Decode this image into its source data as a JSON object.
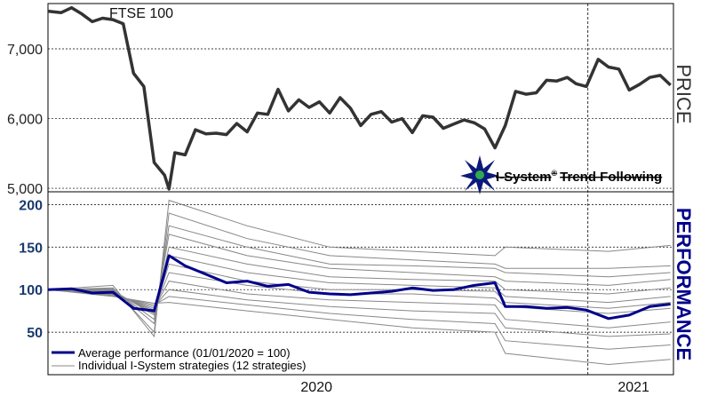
{
  "chart_data": [
    {
      "type": "line",
      "panel": "price",
      "title": "FTSE 100",
      "ylabel": "PRICE",
      "ylim": [
        4950,
        7650
      ],
      "yticks": [
        5000,
        6000,
        7000
      ],
      "ytick_labels": [
        "5,000",
        "6,000",
        "7,000"
      ],
      "grid": "horizontal dotted",
      "x_start": "2020-01-01",
      "x_end": "2021-02-28",
      "year_divider": "2021-01-01",
      "series": [
        {
          "color": "#333333",
          "x": [
            "2020-01-01",
            "2020-01-10",
            "2020-01-17",
            "2020-01-24",
            "2020-01-31",
            "2020-02-07",
            "2020-02-14",
            "2020-02-21",
            "2020-02-28",
            "2020-03-06",
            "2020-03-13",
            "2020-03-20",
            "2020-03-23",
            "2020-03-27",
            "2020-04-03",
            "2020-04-10",
            "2020-04-17",
            "2020-04-24",
            "2020-05-01",
            "2020-05-08",
            "2020-05-15",
            "2020-05-22",
            "2020-05-29",
            "2020-06-05",
            "2020-06-12",
            "2020-06-19",
            "2020-06-26",
            "2020-07-03",
            "2020-07-10",
            "2020-07-17",
            "2020-07-24",
            "2020-07-31",
            "2020-08-07",
            "2020-08-14",
            "2020-08-21",
            "2020-08-28",
            "2020-09-04",
            "2020-09-11",
            "2020-09-18",
            "2020-09-25",
            "2020-10-02",
            "2020-10-09",
            "2020-10-16",
            "2020-10-23",
            "2020-10-30",
            "2020-11-06",
            "2020-11-13",
            "2020-11-20",
            "2020-11-27",
            "2020-12-04",
            "2020-12-11",
            "2020-12-18",
            "2020-12-24",
            "2020-12-31",
            "2021-01-08",
            "2021-01-15",
            "2021-01-22",
            "2021-01-29",
            "2021-02-05",
            "2021-02-12",
            "2021-02-19",
            "2021-02-26"
          ],
          "values": [
            7540,
            7520,
            7590,
            7500,
            7390,
            7440,
            7420,
            7360,
            6650,
            6460,
            5370,
            5190,
            4990,
            5510,
            5480,
            5840,
            5780,
            5790,
            5770,
            5930,
            5810,
            6080,
            6060,
            6420,
            6110,
            6270,
            6160,
            6240,
            6080,
            6300,
            6150,
            5900,
            6060,
            6100,
            5950,
            6000,
            5800,
            6040,
            6020,
            5860,
            5920,
            5980,
            5940,
            5850,
            5580,
            5900,
            6390,
            6350,
            6370,
            6550,
            6540,
            6590,
            6500,
            6460,
            6850,
            6740,
            6710,
            6410,
            6490,
            6590,
            6620,
            6480
          ]
        }
      ]
    },
    {
      "type": "line",
      "panel": "performance",
      "ylabel": "PERFORMANCE",
      "ylim": [
        0,
        215
      ],
      "yticks": [
        50,
        100,
        150,
        200
      ],
      "ytick_labels": [
        "50",
        "100",
        "150",
        "200"
      ],
      "xtick_labels": [
        "2020",
        "2021"
      ],
      "grid": "horizontal dotted",
      "legend": "bottom-left",
      "x_start": "2020-01-01",
      "x_end": "2021-02-28",
      "year_divider": "2021-01-01",
      "series": [
        {
          "name": "Average performance (01/01/2020 = 100)",
          "color": "#00008b",
          "x": [
            "2020-01-01",
            "2020-01-17",
            "2020-01-31",
            "2020-02-14",
            "2020-02-28",
            "2020-03-13",
            "2020-03-23",
            "2020-04-03",
            "2020-04-17",
            "2020-05-01",
            "2020-05-15",
            "2020-05-29",
            "2020-06-12",
            "2020-06-26",
            "2020-07-10",
            "2020-07-24",
            "2020-08-07",
            "2020-08-21",
            "2020-09-04",
            "2020-09-18",
            "2020-10-02",
            "2020-10-16",
            "2020-10-30",
            "2020-11-06",
            "2020-11-20",
            "2020-12-04",
            "2020-12-18",
            "2020-12-31",
            "2021-01-15",
            "2021-01-29",
            "2021-02-12",
            "2021-02-26"
          ],
          "values": [
            100,
            101,
            96,
            97,
            78,
            75,
            140,
            128,
            118,
            108,
            110,
            104,
            106,
            97,
            95,
            94,
            96,
            98,
            102,
            99,
            100,
            105,
            108,
            80,
            80,
            78,
            79,
            76,
            66,
            70,
            80,
            83
          ]
        },
        {
          "name": "Individual I-System strategies (12 strategies)",
          "color": "#888888",
          "x": [
            "2020-01-01",
            "2020-02-14",
            "2020-03-13",
            "2020-03-23",
            "2020-05-15",
            "2020-07-10",
            "2020-09-04",
            "2020-10-30",
            "2020-11-06",
            "2021-01-15",
            "2021-02-26"
          ],
          "members": [
            [
              100,
              105,
              45,
              205,
              175,
              150,
              145,
              140,
              150,
              145,
              152
            ],
            [
              100,
              102,
              50,
              190,
              160,
              140,
              135,
              130,
              125,
              125,
              128
            ],
            [
              100,
              101,
              60,
              175,
              150,
              130,
              128,
              125,
              120,
              115,
              120
            ],
            [
              100,
              100,
              65,
              165,
              140,
              125,
              120,
              115,
              110,
              105,
              112
            ],
            [
              100,
              99,
              70,
              150,
              130,
              115,
              112,
              110,
              100,
              95,
              102
            ],
            [
              100,
              98,
              72,
              140,
              120,
              108,
              105,
              102,
              92,
              85,
              92
            ],
            [
              100,
              97,
              74,
              130,
              110,
              100,
              100,
              98,
              85,
              78,
              85
            ],
            [
              100,
              96,
              76,
              120,
              105,
              95,
              95,
              90,
              80,
              72,
              78
            ],
            [
              100,
              95,
              78,
              110,
              95,
              88,
              85,
              82,
              65,
              55,
              62
            ],
            [
              100,
              94,
              80,
              100,
              88,
              80,
              75,
              72,
              55,
              45,
              48
            ],
            [
              100,
              93,
              82,
              92,
              82,
              72,
              65,
              60,
              40,
              30,
              35
            ],
            [
              100,
              92,
              84,
              85,
              75,
              65,
              55,
              50,
              25,
              12,
              18
            ]
          ]
        }
      ]
    }
  ],
  "brand": {
    "logo_text": "I-System",
    "reg_mark": "®",
    "tagline": "Trend Following"
  }
}
